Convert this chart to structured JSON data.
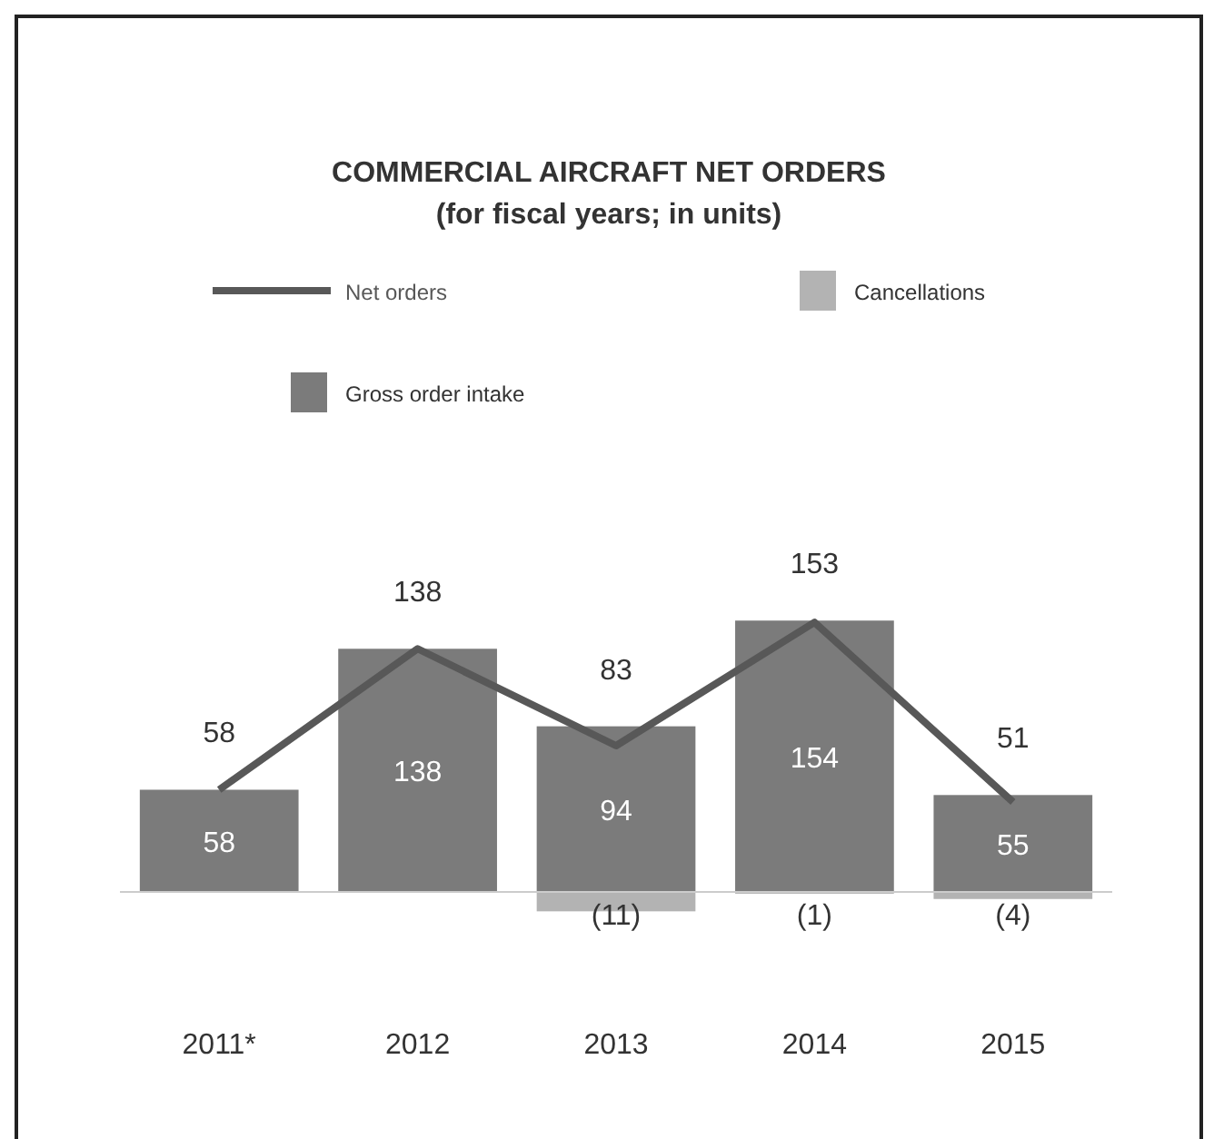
{
  "chart_data": {
    "type": "bar",
    "title": "COMMERCIAL AIRCRAFT NET ORDERS",
    "subtitle": "(for fiscal years; in units)",
    "categories": [
      "2011*",
      "2012",
      "2013",
      "2014",
      "2015"
    ],
    "legend": "top",
    "data_labels": true,
    "series": [
      {
        "name": "Net orders",
        "type": "line",
        "color": "#585858",
        "values": [
          58,
          138,
          83,
          153,
          51
        ]
      },
      {
        "name": "Cancellations",
        "type": "bar",
        "color": "#b3b3b3",
        "values": [
          null,
          null,
          -11,
          -1,
          -4
        ],
        "value_labels": [
          null,
          null,
          "(11)",
          "(1)",
          "(4)"
        ]
      },
      {
        "name": "Gross order intake",
        "type": "bar",
        "color": "#7b7b7b",
        "values": [
          58,
          138,
          94,
          154,
          55
        ]
      }
    ]
  }
}
